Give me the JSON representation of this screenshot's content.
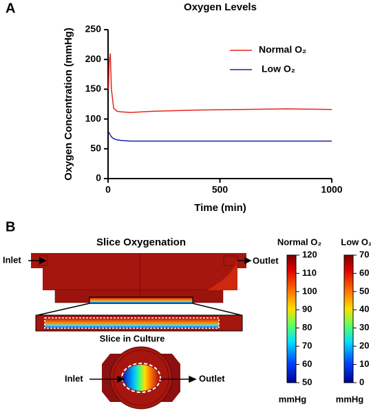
{
  "panel_labels": [
    "A",
    "B"
  ],
  "chart_data": {
    "type": "line",
    "title": "Oxygen Levels",
    "x_label": "Time (min)",
    "y_label": "Oxygen Concentration (mmHg)",
    "x": [
      2,
      5,
      10,
      15,
      25,
      40,
      60,
      100,
      200,
      400,
      600,
      800,
      1000
    ],
    "series": [
      {
        "name": "Normal O₂",
        "color": "#e8241c",
        "values": [
          150,
          195,
          210,
          150,
          118,
          113,
          112,
          111,
          113,
          115,
          116,
          117,
          116
        ]
      },
      {
        "name": "Low O₂",
        "color": "#1c20a8",
        "values": [
          78,
          77,
          73,
          70,
          67,
          65,
          64,
          63,
          63,
          63,
          63,
          63,
          63
        ]
      }
    ],
    "xlim": [
      0,
      1000
    ],
    "xticks": [
      0,
      500,
      1000
    ],
    "ylim": [
      0,
      250
    ],
    "yticks": [
      0,
      50,
      100,
      150,
      200,
      250
    ],
    "grid": false,
    "legend": "upper right"
  },
  "diagram": {
    "title": "Slice Oxygenation",
    "inlet": "Inlet",
    "outlet": "Outlet",
    "zoom_caption": "Slice in Culture",
    "inlet_bottom": "Inlet",
    "outlet_bottom": "Outlet",
    "colorbars": [
      {
        "title": "Normal O₂",
        "range": [
          50,
          120
        ],
        "ticks": [
          50,
          60,
          70,
          80,
          90,
          100,
          110,
          120
        ],
        "unit": "mmHg"
      },
      {
        "title": "Low O₂",
        "range": [
          0,
          70
        ],
        "ticks": [
          0,
          10,
          20,
          30,
          40,
          50,
          60,
          70
        ],
        "unit": "mmHg"
      }
    ]
  }
}
